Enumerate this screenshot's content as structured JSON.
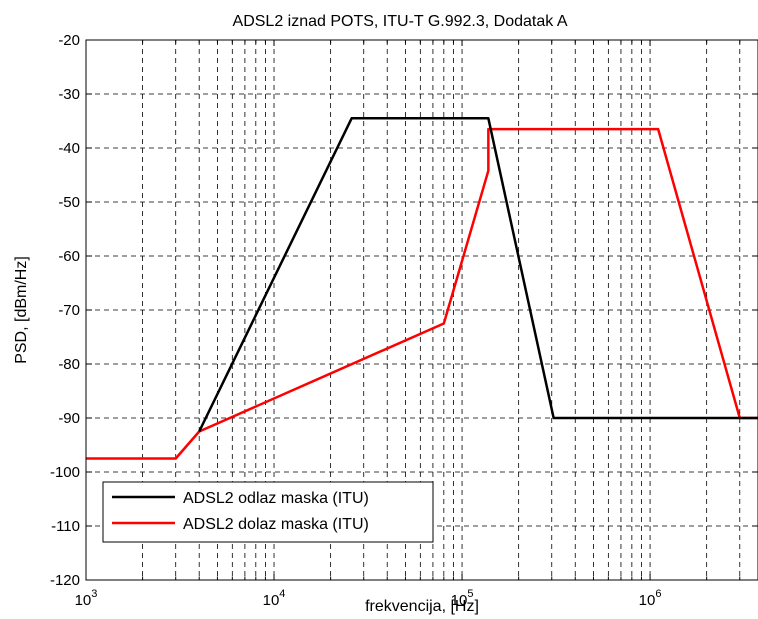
{
  "chart_data": {
    "type": "line",
    "title": "ADSL2 iznad POTS, ITU-T G.992.3, Dodatak A",
    "xlabel": "frekvencija, [Hz]",
    "ylabel": "PSD, [dBm/Hz]",
    "x_scale": "log",
    "xlim": [
      1000,
      3750000
    ],
    "ylim": [
      -120,
      -20
    ],
    "grid": true,
    "legend_position": "bottom-left",
    "x_ticks": [
      {
        "value": 1000,
        "base": "10",
        "exp": "3"
      },
      {
        "value": 10000,
        "base": "10",
        "exp": "4"
      },
      {
        "value": 100000,
        "base": "10",
        "exp": "5"
      },
      {
        "value": 1000000,
        "base": "10",
        "exp": "6"
      }
    ],
    "y_ticks": [
      "-20",
      "-30",
      "-40",
      "-50",
      "-60",
      "-70",
      "-80",
      "-90",
      "-100",
      "-110",
      "-120"
    ],
    "series": [
      {
        "name": "ADSL2 odlaz maska (ITU)",
        "color": "#000000",
        "x": [
          4000,
          25875,
          138000,
          307000,
          3750000
        ],
        "y": [
          -92.5,
          -34.5,
          -34.5,
          -90,
          -90
        ]
      },
      {
        "name": "ADSL2 dolaz maska (ITU)",
        "color": "#ff0000",
        "x": [
          1000,
          3000,
          4000,
          80000,
          138000,
          138000,
          1104000,
          3000000,
          3750000
        ],
        "y": [
          -97.5,
          -97.5,
          -92.5,
          -72.5,
          -44.2,
          -36.5,
          -36.5,
          -90,
          -90
        ]
      }
    ]
  }
}
